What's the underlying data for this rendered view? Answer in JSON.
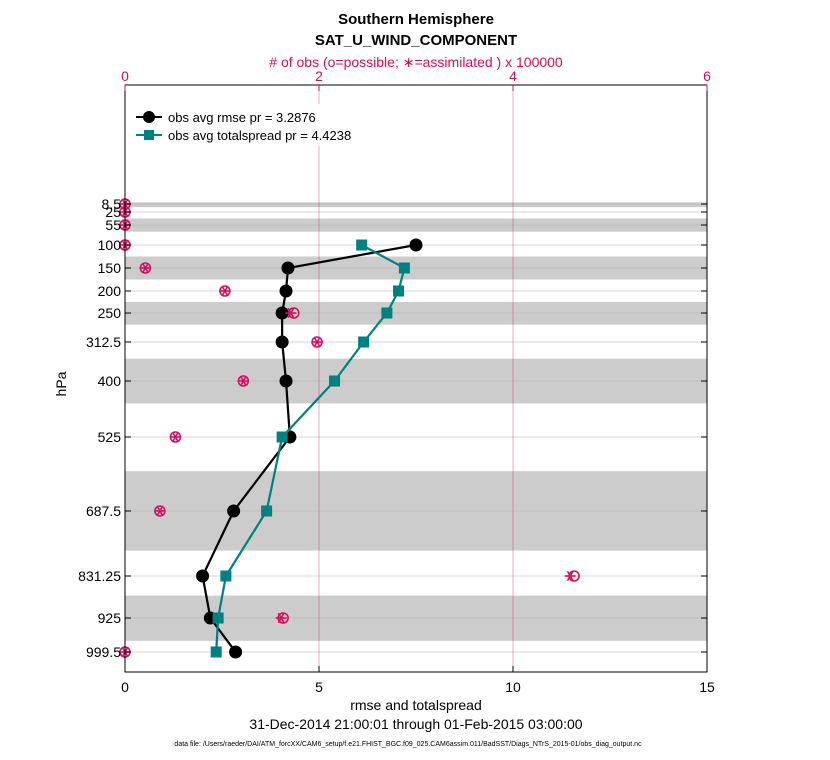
{
  "chart_data": {
    "type": "line",
    "title": "Southern Hemisphere",
    "subtitle": "SAT_U_WIND_COMPONENT",
    "top_axis_label": "# of obs (o=possible; ∗=assimilated ) x 100000",
    "xlabel": "rmse and totalspread",
    "ylabel": "hPa",
    "date_range": "31-Dec-2014 21:00:01 through 01-Feb-2015 03:00:00",
    "data_file": "data file: /Users/raeder/DAI/ATM_forcXX/CAM6_setup/f.e21.FHIST_BGC.f09_025.CAM6assim.011/BadSST/Diags_NTrS_2015-01/obs_diag_output.nc",
    "xlim": [
      0,
      15
    ],
    "top_xlim": [
      0,
      6
    ],
    "x_ticks": [
      "0",
      "5",
      "10",
      "15"
    ],
    "top_ticks": [
      "0",
      "2",
      "4",
      "6"
    ],
    "pressure_levels": [
      "8.5",
      "25",
      "55",
      "100",
      "150",
      "200",
      "250",
      "312.5",
      "400",
      "525",
      "687.5",
      "831.25",
      "925",
      "999.5"
    ],
    "shaded_bands_hpa": [
      [
        5,
        15
      ],
      [
        40,
        70
      ],
      [
        125,
        175
      ],
      [
        225,
        275
      ],
      [
        350,
        450
      ],
      [
        600,
        775
      ],
      [
        875,
        975
      ]
    ],
    "series": [
      {
        "name": "obs avg rmse",
        "legend": "obs avg rmse    pr = 3.2876",
        "color": "#000000",
        "marker": "circle",
        "levels": [
          100,
          150,
          200,
          250,
          312.5,
          400,
          525,
          687.5,
          831.25,
          925,
          999.5
        ],
        "values": [
          7.5,
          4.2,
          4.15,
          4.05,
          4.05,
          4.15,
          4.25,
          2.8,
          2.0,
          2.2,
          2.85
        ]
      },
      {
        "name": "obs avg totalspread",
        "legend": "obs avg totalspread    pr = 4.4238",
        "color": "#008080",
        "marker": "square",
        "levels": [
          100,
          150,
          200,
          250,
          312.5,
          400,
          525,
          687.5,
          831.25,
          925,
          999.5
        ],
        "values": [
          6.1,
          7.2,
          7.05,
          6.75,
          6.15,
          5.4,
          4.05,
          3.65,
          2.6,
          2.4,
          2.35
        ]
      }
    ],
    "obs_counts": {
      "color": "#d01060",
      "levels": [
        "8.5",
        "25",
        "55",
        "100",
        "150",
        "200",
        "250",
        "312.5",
        "400",
        "525",
        "687.5",
        "831.25",
        "925",
        "999.5"
      ],
      "possible": [
        0,
        0,
        0,
        0,
        0.21,
        1.03,
        1.74,
        1.98,
        1.22,
        0.52,
        0.36,
        4.63,
        1.63,
        0
      ],
      "assimilated": [
        0,
        0,
        0,
        0,
        0.21,
        1.03,
        1.71,
        1.98,
        1.22,
        0.52,
        0.36,
        4.59,
        1.61,
        0
      ]
    }
  }
}
